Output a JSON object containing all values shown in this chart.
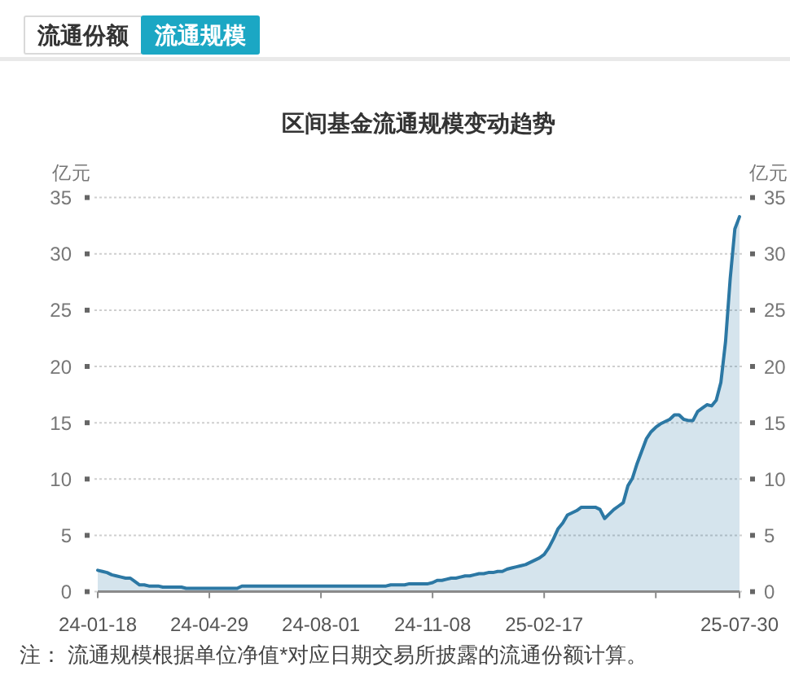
{
  "chart_data": {
    "type": "area",
    "title": "区间基金流通规模变动趋势",
    "ylabel": "亿元",
    "y2label": "亿元",
    "categories": [
      "24-01-18",
      null,
      null,
      null,
      null,
      null,
      null,
      null,
      null,
      null,
      null,
      null,
      null,
      null,
      null,
      null,
      null,
      null,
      null,
      null,
      null,
      null,
      null,
      null,
      "24-04-29",
      null,
      null,
      null,
      null,
      null,
      null,
      null,
      null,
      null,
      null,
      null,
      null,
      null,
      null,
      null,
      null,
      null,
      null,
      null,
      null,
      null,
      null,
      null,
      "24-08-01",
      null,
      null,
      null,
      null,
      null,
      null,
      null,
      null,
      null,
      null,
      null,
      null,
      null,
      null,
      null,
      null,
      null,
      null,
      null,
      null,
      null,
      null,
      null,
      "24-11-08",
      null,
      null,
      null,
      null,
      null,
      null,
      null,
      null,
      null,
      null,
      null,
      null,
      null,
      null,
      null,
      null,
      null,
      null,
      null,
      null,
      null,
      null,
      null,
      "25-02-17",
      null,
      null,
      null,
      null,
      null,
      null,
      null,
      null,
      null,
      null,
      null,
      null,
      null,
      null,
      null,
      null,
      null,
      null,
      null,
      null,
      null,
      null,
      null,
      null,
      null,
      null,
      null,
      null,
      null,
      null,
      null,
      null,
      null,
      null,
      null,
      null,
      null,
      null,
      null,
      null,
      null,
      "25-07-30"
    ],
    "series": [
      {
        "color": "#2c78a4",
        "values": [
          1.9,
          1.8,
          1.7,
          1.5,
          1.4,
          1.3,
          1.2,
          1.2,
          0.9,
          0.6,
          0.6,
          0.5,
          0.5,
          0.5,
          0.4,
          0.4,
          0.4,
          0.4,
          0.4,
          0.3,
          0.3,
          0.3,
          0.3,
          0.3,
          0.3,
          0.3,
          0.3,
          0.3,
          0.3,
          0.3,
          0.3,
          0.5,
          0.5,
          0.5,
          0.5,
          0.5,
          0.5,
          0.5,
          0.5,
          0.5,
          0.5,
          0.5,
          0.5,
          0.5,
          0.5,
          0.5,
          0.5,
          0.5,
          0.5,
          0.5,
          0.5,
          0.5,
          0.5,
          0.5,
          0.5,
          0.5,
          0.5,
          0.5,
          0.5,
          0.5,
          0.5,
          0.5,
          0.5,
          0.6,
          0.6,
          0.6,
          0.6,
          0.7,
          0.7,
          0.7,
          0.7,
          0.7,
          0.8,
          1.0,
          1.0,
          1.1,
          1.2,
          1.2,
          1.3,
          1.4,
          1.4,
          1.5,
          1.6,
          1.6,
          1.7,
          1.7,
          1.8,
          1.8,
          2.0,
          2.1,
          2.2,
          2.3,
          2.4,
          2.6,
          2.8,
          3.0,
          3.3,
          3.9,
          4.7,
          5.6,
          6.1,
          6.8,
          7.0,
          7.2,
          7.5,
          7.5,
          7.5,
          7.5,
          7.3,
          6.5,
          6.9,
          7.3,
          7.6,
          7.9,
          9.4,
          10.1,
          11.4,
          12.5,
          13.6,
          14.2,
          14.6,
          14.9,
          15.1,
          15.3,
          15.7,
          15.7,
          15.3,
          15.2,
          15.2,
          16.0,
          16.3,
          16.6,
          16.5,
          17.0,
          18.6,
          22.2,
          27.8,
          32.2,
          33.3
        ]
      }
    ],
    "ylim": [
      0,
      35
    ],
    "yticks": [
      0,
      5,
      10,
      15,
      20,
      25,
      30,
      35
    ],
    "y2lim": [
      0,
      35
    ],
    "y2ticks": [
      0,
      5,
      10,
      15,
      20,
      25,
      30,
      35
    ],
    "grid": "y",
    "annotations": [
      "流通份额",
      "流通规模",
      "注： 流通规模根据单位净值*对应日期交易所披露的流通份额计算。"
    ]
  }
}
